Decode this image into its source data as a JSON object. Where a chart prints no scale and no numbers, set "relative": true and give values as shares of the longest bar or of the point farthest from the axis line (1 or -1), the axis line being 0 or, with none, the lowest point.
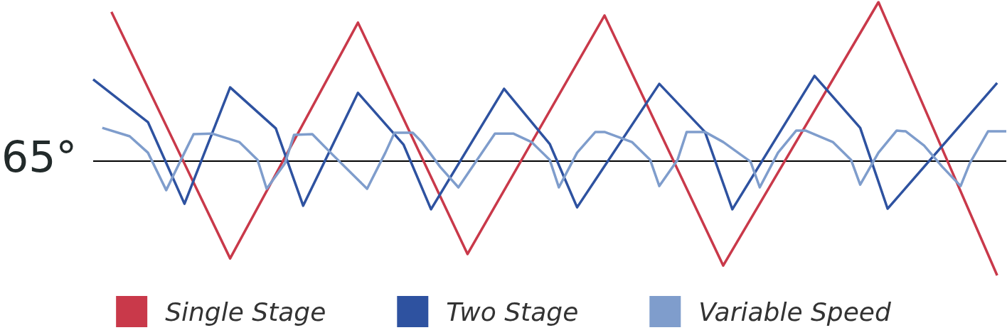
{
  "chart_data": {
    "type": "line",
    "relative": true,
    "grid": false,
    "legend": "bottom",
    "marker": "none",
    "categories": [
      null,
      null,
      null,
      null,
      null,
      null,
      null,
      null,
      null,
      null,
      null,
      null,
      null,
      null,
      null,
      null,
      null,
      null,
      null,
      null,
      null,
      null,
      null,
      null,
      null,
      null,
      null,
      null,
      null,
      null,
      null,
      null,
      null,
      null,
      null,
      null,
      null,
      null,
      null,
      null,
      null,
      null,
      null,
      null,
      null,
      null,
      null,
      null,
      null,
      null,
      null,
      null,
      null,
      null,
      null,
      null,
      null,
      null,
      null,
      null,
      null,
      null,
      null,
      null,
      null,
      null,
      null,
      null,
      null,
      null,
      null,
      null,
      null,
      null,
      null,
      null,
      null,
      null,
      null,
      null,
      null,
      null,
      null,
      null,
      null,
      null,
      null,
      null,
      null,
      null,
      null,
      null,
      null,
      null,
      null,
      null,
      null,
      null,
      null,
      null,
      null
    ],
    "annotations": [
      "65°"
    ],
    "ref_lines": [
      {
        "axis": "y",
        "value": 0.418,
        "color": "#000000"
      }
    ],
    "series": [
      {
        "name": "Single Stage",
        "color": "#c9394a",
        "values": [
          null,
          null,
          0.964,
          null,
          null,
          null,
          null,
          null,
          null,
          null,
          null,
          null,
          null,
          null,
          null,
          0.062,
          null,
          null,
          null,
          null,
          null,
          null,
          null,
          null,
          null,
          null,
          null,
          null,
          null,
          0.925,
          null,
          null,
          null,
          null,
          null,
          null,
          null,
          null,
          null,
          null,
          null,
          0.078,
          null,
          null,
          null,
          null,
          null,
          null,
          null,
          null,
          null,
          null,
          null,
          null,
          null,
          null,
          0.951,
          null,
          null,
          null,
          null,
          null,
          null,
          null,
          null,
          null,
          null,
          null,
          null,
          0.036,
          null,
          null,
          null,
          null,
          null,
          null,
          null,
          null,
          null,
          null,
          null,
          null,
          null,
          null,
          null,
          null,
          1,
          null,
          null,
          null,
          null,
          null,
          null,
          null,
          null,
          null,
          null,
          null,
          null,
          0,
          null
        ]
      },
      {
        "name": "Two Stage",
        "color": "#2e52a0",
        "values": [
          0.717,
          null,
          null,
          null,
          null,
          null,
          0.561,
          null,
          null,
          null,
          0.262,
          null,
          null,
          null,
          null,
          0.688,
          null,
          null,
          null,
          null,
          0.538,
          null,
          null,
          0.255,
          null,
          null,
          null,
          null,
          null,
          0.668,
          null,
          null,
          null,
          null,
          0.478,
          null,
          null,
          0.242,
          null,
          null,
          null,
          null,
          null,
          null,
          null,
          0.683,
          null,
          null,
          null,
          null,
          0.481,
          null,
          null,
          0.249,
          null,
          null,
          null,
          null,
          null,
          null,
          null,
          null,
          0.701,
          null,
          null,
          null,
          null,
          0.525,
          null,
          null,
          0.242,
          null,
          null,
          null,
          null,
          null,
          null,
          null,
          null,
          0.73,
          null,
          null,
          null,
          null,
          0.54,
          null,
          null,
          0.244,
          null,
          null,
          null,
          null,
          null,
          null,
          null,
          null,
          null,
          null,
          null,
          0.704,
          null
        ]
      },
      {
        "name": "Variable Speed",
        "color": "#7f9dcc",
        "values": [
          null,
          0.54,
          null,
          null,
          0.509,
          null,
          0.449,
          null,
          0.312,
          null,
          0.449,
          0.517,
          null,
          0.519,
          null,
          null,
          0.488,
          null,
          0.423,
          0.317,
          null,
          0.41,
          0.514,
          null,
          0.517,
          null,
          0.449,
          null,
          null,
          null,
          0.317,
          null,
          0.449,
          0.522,
          null,
          0.522,
          0.488,
          null,
          0.397,
          null,
          0.322,
          null,
          null,
          null,
          0.519,
          null,
          0.519,
          null,
          0.488,
          null,
          0.423,
          0.322,
          null,
          0.449,
          null,
          0.525,
          0.525,
          null,
          null,
          0.488,
          null,
          0.423,
          0.327,
          null,
          0.423,
          0.525,
          null,
          0.525,
          null,
          0.488,
          null,
          null,
          0.416,
          0.322,
          null,
          0.449,
          null,
          0.53,
          0.53,
          null,
          null,
          0.488,
          null,
          0.423,
          0.332,
          null,
          0.449,
          null,
          0.53,
          0.527,
          null,
          0.475,
          null,
          0.397,
          null,
          0.327,
          0.41,
          null,
          0.527,
          null,
          0.527
        ]
      }
    ]
  }
}
